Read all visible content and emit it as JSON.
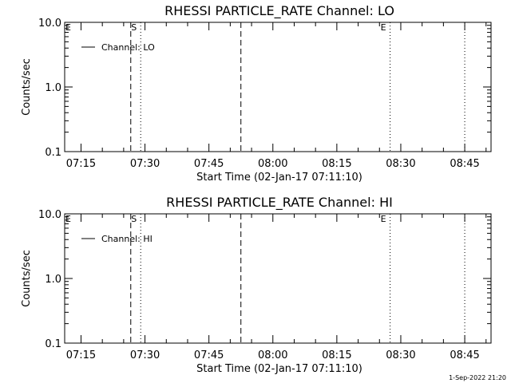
{
  "chart_data": [
    {
      "type": "line",
      "title": "RHESSI PARTICLE_RATE Channel: LO",
      "xlabel": "Start Time (02-Jan-17 07:11:10)",
      "ylabel": "Counts/sec",
      "x_tick_labels": [
        "07:15",
        "07:30",
        "07:45",
        "08:00",
        "08:15",
        "08:30",
        "08:45"
      ],
      "y_tick_labels": [
        "0.1",
        "1.0",
        "10.0"
      ],
      "y_scale": "log",
      "ylim": [
        0.1,
        10.0
      ],
      "xlim": [
        "07:11:10",
        "08:51:10"
      ],
      "series": [
        {
          "name": "Channel: LO",
          "values": []
        }
      ],
      "markers": [
        {
          "time": "07:26:40",
          "style": "dashed",
          "label": ""
        },
        {
          "time": "07:29:00",
          "style": "dotted",
          "label": "S"
        },
        {
          "time": "07:52:30",
          "style": "dashed",
          "label": ""
        },
        {
          "time": "08:27:30",
          "style": "dotted",
          "label": "E"
        },
        {
          "time": "08:45:00",
          "style": "dotted",
          "label": ""
        }
      ],
      "left_edge_label": "E"
    },
    {
      "type": "line",
      "title": "RHESSI PARTICLE_RATE Channel: HI",
      "xlabel": "Start Time (02-Jan-17 07:11:10)",
      "ylabel": "Counts/sec",
      "x_tick_labels": [
        "07:15",
        "07:30",
        "07:45",
        "08:00",
        "08:15",
        "08:30",
        "08:45"
      ],
      "y_tick_labels": [
        "0.1",
        "1.0",
        "10.0"
      ],
      "y_scale": "log",
      "ylim": [
        0.1,
        10.0
      ],
      "xlim": [
        "07:11:10",
        "08:51:10"
      ],
      "series": [
        {
          "name": "Channel: HI",
          "values": []
        }
      ],
      "markers": [
        {
          "time": "07:26:40",
          "style": "dashed",
          "label": ""
        },
        {
          "time": "07:29:00",
          "style": "dotted",
          "label": "S"
        },
        {
          "time": "07:52:30",
          "style": "dashed",
          "label": ""
        },
        {
          "time": "08:27:30",
          "style": "dotted",
          "label": "E"
        },
        {
          "time": "08:45:00",
          "style": "dotted",
          "label": ""
        }
      ],
      "left_edge_label": "E"
    }
  ],
  "footer_stamp": "1-Sep-2022 21:20"
}
